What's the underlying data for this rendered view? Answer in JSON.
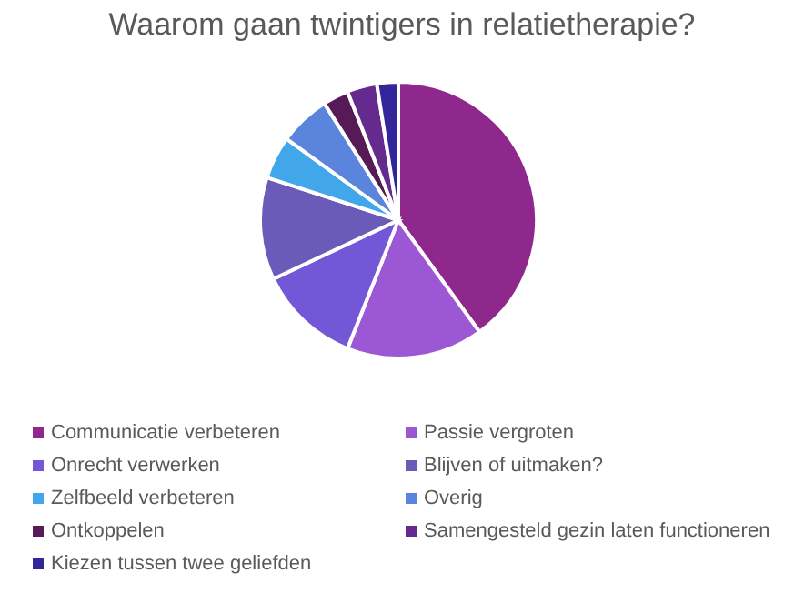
{
  "chart_data": {
    "type": "pie",
    "title": "Waarom gaan twintigers in relatietherapie?",
    "categories": [
      "Communicatie verbeteren",
      "Passie vergroten",
      "Onrecht verwerken",
      "Blijven of uitmaken?",
      "Zelfbeeld verbeteren",
      "Overig",
      "Ontkoppelen",
      "Samengesteld gezin laten functioneren",
      "Kiezen tussen twee geliefden"
    ],
    "values": [
      40,
      16,
      12,
      12,
      5,
      6,
      3,
      3.5,
      2.5
    ],
    "colors": [
      "#8f288c",
      "#9c57d4",
      "#7457d6",
      "#6a5bb8",
      "#42a6ea",
      "#5b84dc",
      "#561a57",
      "#652a8e",
      "#33259a"
    ],
    "legend": "bottom"
  }
}
